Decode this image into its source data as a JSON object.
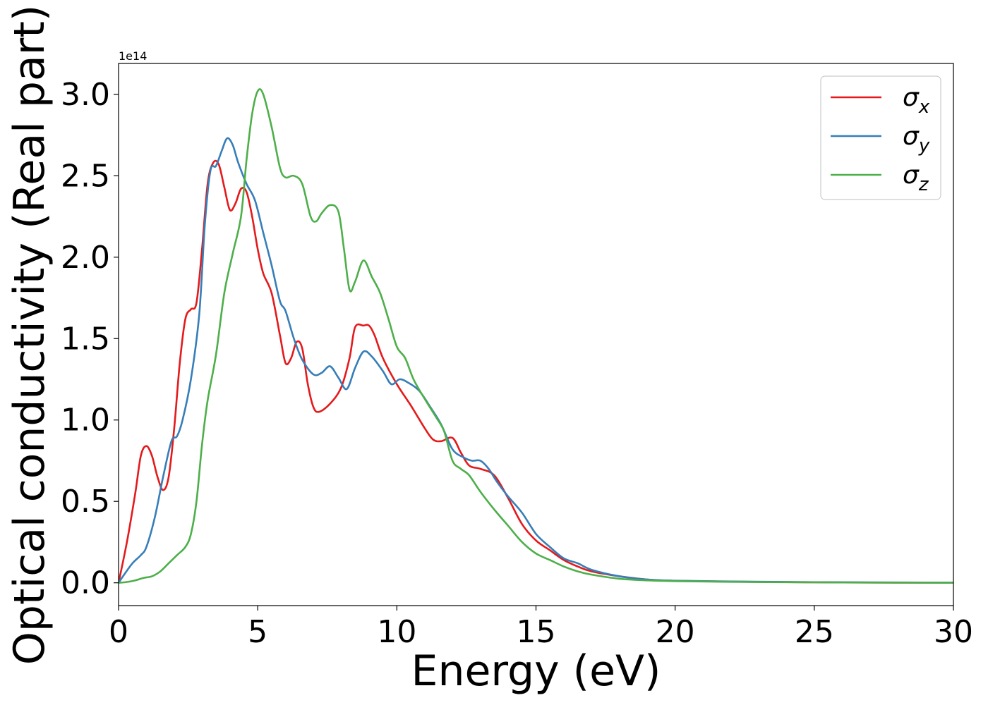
{
  "chart_data": {
    "type": "line",
    "xlabel": "Energy (eV)",
    "ylabel": "Optical conductivity (Real part)",
    "y_offset_label": "1e14",
    "y_multiplier": 100000000000000.0,
    "xlim": [
      0,
      30
    ],
    "ylim": [
      -0.14,
      3.19
    ],
    "xticks": [
      0,
      5,
      10,
      15,
      20,
      25,
      30
    ],
    "yticks": [
      0.0,
      0.5,
      1.0,
      1.5,
      2.0,
      2.5,
      3.0
    ],
    "xtick_labels": [
      "0",
      "5",
      "10",
      "15",
      "20",
      "25",
      "30"
    ],
    "ytick_labels": [
      "0.0",
      "0.5",
      "1.0",
      "1.5",
      "2.0",
      "2.5",
      "3.0"
    ],
    "grid": false,
    "legend_position": "top-right",
    "series": [
      {
        "name": "σx",
        "symbol": "σ",
        "subscript": "x",
        "color": "#e41a1c",
        "points": [
          [
            0,
            0
          ],
          [
            0.3,
            0.25
          ],
          [
            0.6,
            0.55
          ],
          [
            0.8,
            0.78
          ],
          [
            1.0,
            0.84
          ],
          [
            1.2,
            0.78
          ],
          [
            1.4,
            0.65
          ],
          [
            1.6,
            0.57
          ],
          [
            1.8,
            0.65
          ],
          [
            2.0,
            0.95
          ],
          [
            2.2,
            1.35
          ],
          [
            2.4,
            1.62
          ],
          [
            2.6,
            1.68
          ],
          [
            2.8,
            1.72
          ],
          [
            3.0,
            2.05
          ],
          [
            3.2,
            2.45
          ],
          [
            3.4,
            2.58
          ],
          [
            3.6,
            2.57
          ],
          [
            3.8,
            2.43
          ],
          [
            4.0,
            2.29
          ],
          [
            4.2,
            2.33
          ],
          [
            4.4,
            2.42
          ],
          [
            4.6,
            2.4
          ],
          [
            4.8,
            2.25
          ],
          [
            5.0,
            2.05
          ],
          [
            5.2,
            1.9
          ],
          [
            5.5,
            1.78
          ],
          [
            5.8,
            1.52
          ],
          [
            6.0,
            1.35
          ],
          [
            6.2,
            1.38
          ],
          [
            6.4,
            1.48
          ],
          [
            6.6,
            1.44
          ],
          [
            6.8,
            1.22
          ],
          [
            7.0,
            1.08
          ],
          [
            7.2,
            1.05
          ],
          [
            7.6,
            1.1
          ],
          [
            8.0,
            1.2
          ],
          [
            8.3,
            1.38
          ],
          [
            8.5,
            1.57
          ],
          [
            8.8,
            1.58
          ],
          [
            9.0,
            1.58
          ],
          [
            9.2,
            1.52
          ],
          [
            9.5,
            1.38
          ],
          [
            10.0,
            1.22
          ],
          [
            10.5,
            1.09
          ],
          [
            11.0,
            0.95
          ],
          [
            11.3,
            0.88
          ],
          [
            11.6,
            0.87
          ],
          [
            12.0,
            0.89
          ],
          [
            12.3,
            0.8
          ],
          [
            12.6,
            0.72
          ],
          [
            13.0,
            0.7
          ],
          [
            13.5,
            0.66
          ],
          [
            14.0,
            0.52
          ],
          [
            14.5,
            0.36
          ],
          [
            15.0,
            0.26
          ],
          [
            15.5,
            0.2
          ],
          [
            16.0,
            0.14
          ],
          [
            16.5,
            0.1
          ],
          [
            17.0,
            0.07
          ],
          [
            18.0,
            0.04
          ],
          [
            19.0,
            0.02
          ],
          [
            20.0,
            0.012
          ],
          [
            22.0,
            0.007
          ],
          [
            25.0,
            0.003
          ],
          [
            28.0,
            0.001
          ],
          [
            30.0,
            0.001
          ]
        ]
      },
      {
        "name": "σy",
        "symbol": "σ",
        "subscript": "y",
        "color": "#377eb8",
        "points": [
          [
            0,
            0
          ],
          [
            0.2,
            0.05
          ],
          [
            0.5,
            0.12
          ],
          [
            0.8,
            0.17
          ],
          [
            1.0,
            0.22
          ],
          [
            1.3,
            0.4
          ],
          [
            1.6,
            0.65
          ],
          [
            1.9,
            0.87
          ],
          [
            2.1,
            0.9
          ],
          [
            2.3,
            1.0
          ],
          [
            2.6,
            1.25
          ],
          [
            2.9,
            1.65
          ],
          [
            3.1,
            2.2
          ],
          [
            3.3,
            2.53
          ],
          [
            3.5,
            2.56
          ],
          [
            3.7,
            2.65
          ],
          [
            3.9,
            2.73
          ],
          [
            4.1,
            2.69
          ],
          [
            4.3,
            2.58
          ],
          [
            4.6,
            2.45
          ],
          [
            4.9,
            2.35
          ],
          [
            5.2,
            2.15
          ],
          [
            5.5,
            1.95
          ],
          [
            5.8,
            1.73
          ],
          [
            6.0,
            1.67
          ],
          [
            6.3,
            1.5
          ],
          [
            6.6,
            1.37
          ],
          [
            7.0,
            1.28
          ],
          [
            7.3,
            1.29
          ],
          [
            7.6,
            1.33
          ],
          [
            7.9,
            1.26
          ],
          [
            8.2,
            1.19
          ],
          [
            8.5,
            1.32
          ],
          [
            8.8,
            1.42
          ],
          [
            9.1,
            1.39
          ],
          [
            9.5,
            1.3
          ],
          [
            9.8,
            1.22
          ],
          [
            10.1,
            1.25
          ],
          [
            10.4,
            1.23
          ],
          [
            10.8,
            1.18
          ],
          [
            11.2,
            1.08
          ],
          [
            11.6,
            0.97
          ],
          [
            12.0,
            0.82
          ],
          [
            12.4,
            0.77
          ],
          [
            12.7,
            0.75
          ],
          [
            13.0,
            0.75
          ],
          [
            13.3,
            0.7
          ],
          [
            13.6,
            0.62
          ],
          [
            14.0,
            0.53
          ],
          [
            14.5,
            0.43
          ],
          [
            15.0,
            0.3
          ],
          [
            15.5,
            0.22
          ],
          [
            16.0,
            0.15
          ],
          [
            16.5,
            0.12
          ],
          [
            17.0,
            0.08
          ],
          [
            18.0,
            0.04
          ],
          [
            19.0,
            0.02
          ],
          [
            20.0,
            0.013
          ],
          [
            22.0,
            0.008
          ],
          [
            25.0,
            0.004
          ],
          [
            28.0,
            0.002
          ],
          [
            30.0,
            0.001
          ]
        ]
      },
      {
        "name": "σz",
        "symbol": "σ",
        "subscript": "z",
        "color": "#4daf4a",
        "points": [
          [
            0,
            0
          ],
          [
            0.3,
            0.005
          ],
          [
            0.6,
            0.015
          ],
          [
            0.9,
            0.03
          ],
          [
            1.2,
            0.04
          ],
          [
            1.5,
            0.07
          ],
          [
            1.8,
            0.12
          ],
          [
            2.1,
            0.17
          ],
          [
            2.4,
            0.22
          ],
          [
            2.6,
            0.3
          ],
          [
            2.8,
            0.5
          ],
          [
            3.0,
            0.85
          ],
          [
            3.2,
            1.12
          ],
          [
            3.5,
            1.4
          ],
          [
            3.8,
            1.78
          ],
          [
            4.1,
            2.02
          ],
          [
            4.4,
            2.25
          ],
          [
            4.6,
            2.6
          ],
          [
            4.8,
            2.88
          ],
          [
            5.0,
            3.02
          ],
          [
            5.2,
            3.0
          ],
          [
            5.5,
            2.8
          ],
          [
            5.8,
            2.55
          ],
          [
            6.0,
            2.49
          ],
          [
            6.3,
            2.5
          ],
          [
            6.6,
            2.45
          ],
          [
            6.9,
            2.25
          ],
          [
            7.1,
            2.22
          ],
          [
            7.3,
            2.27
          ],
          [
            7.6,
            2.32
          ],
          [
            7.9,
            2.28
          ],
          [
            8.1,
            2.05
          ],
          [
            8.3,
            1.8
          ],
          [
            8.5,
            1.85
          ],
          [
            8.8,
            1.98
          ],
          [
            9.1,
            1.88
          ],
          [
            9.4,
            1.78
          ],
          [
            9.7,
            1.62
          ],
          [
            10.0,
            1.45
          ],
          [
            10.3,
            1.38
          ],
          [
            10.6,
            1.25
          ],
          [
            11.0,
            1.13
          ],
          [
            11.4,
            1.02
          ],
          [
            11.7,
            0.93
          ],
          [
            12.0,
            0.75
          ],
          [
            12.3,
            0.7
          ],
          [
            12.6,
            0.66
          ],
          [
            13.0,
            0.56
          ],
          [
            13.5,
            0.45
          ],
          [
            14.0,
            0.35
          ],
          [
            14.5,
            0.25
          ],
          [
            15.0,
            0.18
          ],
          [
            15.5,
            0.14
          ],
          [
            16.0,
            0.1
          ],
          [
            16.5,
            0.07
          ],
          [
            17.0,
            0.05
          ],
          [
            18.0,
            0.025
          ],
          [
            19.0,
            0.015
          ],
          [
            20.0,
            0.01
          ],
          [
            22.0,
            0.006
          ],
          [
            25.0,
            0.003
          ],
          [
            28.0,
            0.001
          ],
          [
            30.0,
            0.001
          ]
        ]
      }
    ]
  }
}
